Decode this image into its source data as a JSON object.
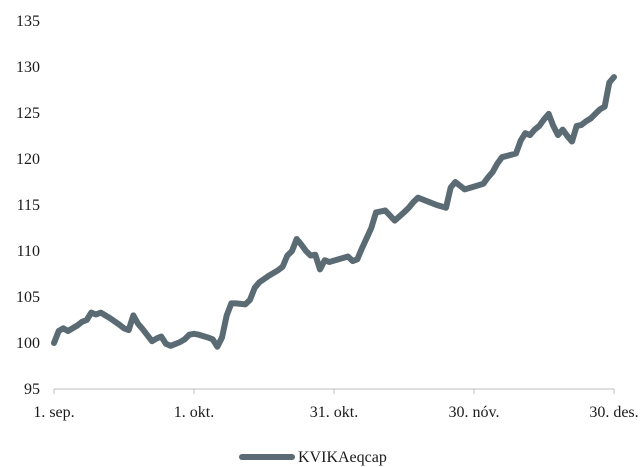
{
  "chart_data": {
    "type": "line",
    "title": "",
    "xlabel": "",
    "ylabel": "",
    "ylim": [
      95,
      135
    ],
    "y_ticks": [
      95,
      100,
      105,
      110,
      115,
      120,
      125,
      130,
      135
    ],
    "y_tick_labels": [
      "95",
      "100",
      "105",
      "110",
      "115",
      "120",
      "125",
      "130",
      "135"
    ],
    "x_ticks": [
      {
        "x": "2023-09-01",
        "label": "1. sep."
      },
      {
        "x": "2023-10-01",
        "label": "1. okt."
      },
      {
        "x": "2023-10-31",
        "label": "31. okt."
      },
      {
        "x": "2023-11-30",
        "label": "30. nóv."
      },
      {
        "x": "2023-12-30",
        "label": "30. des."
      }
    ],
    "xlim": [
      "2023-09-01",
      "2023-12-30"
    ],
    "grid": false,
    "legend_position": "bottom-center",
    "series": [
      {
        "name": "KVIKAeqcap",
        "color": "#5b6b73",
        "points": [
          [
            "2023-09-01",
            100.0
          ],
          [
            "2023-09-02",
            101.3
          ],
          [
            "2023-09-03",
            101.6
          ],
          [
            "2023-09-04",
            101.3
          ],
          [
            "2023-09-06",
            101.9
          ],
          [
            "2023-09-07",
            102.3
          ],
          [
            "2023-09-08",
            102.5
          ],
          [
            "2023-09-09",
            103.3
          ],
          [
            "2023-09-10",
            103.1
          ],
          [
            "2023-09-11",
            103.3
          ],
          [
            "2023-09-13",
            102.7
          ],
          [
            "2023-09-15",
            102.0
          ],
          [
            "2023-09-16",
            101.6
          ],
          [
            "2023-09-17",
            101.4
          ],
          [
            "2023-09-18",
            103.0
          ],
          [
            "2023-09-19",
            102.1
          ],
          [
            "2023-09-20",
            101.5
          ],
          [
            "2023-09-22",
            100.2
          ],
          [
            "2023-09-23",
            100.5
          ],
          [
            "2023-09-24",
            100.7
          ],
          [
            "2023-09-25",
            99.9
          ],
          [
            "2023-09-26",
            99.7
          ],
          [
            "2023-09-28",
            100.1
          ],
          [
            "2023-09-29",
            100.4
          ],
          [
            "2023-09-30",
            100.9
          ],
          [
            "2023-10-01",
            101.0
          ],
          [
            "2023-10-02",
            100.9
          ],
          [
            "2023-10-04",
            100.6
          ],
          [
            "2023-10-05",
            100.4
          ],
          [
            "2023-10-06",
            99.6
          ],
          [
            "2023-10-07",
            100.6
          ],
          [
            "2023-10-08",
            103.0
          ],
          [
            "2023-10-09",
            104.3
          ],
          [
            "2023-10-10",
            104.3
          ],
          [
            "2023-10-12",
            104.2
          ],
          [
            "2023-10-13",
            104.7
          ],
          [
            "2023-10-14",
            106.0
          ],
          [
            "2023-10-15",
            106.6
          ],
          [
            "2023-10-17",
            107.3
          ],
          [
            "2023-10-19",
            107.9
          ],
          [
            "2023-10-20",
            108.3
          ],
          [
            "2023-10-21",
            109.5
          ],
          [
            "2023-10-22",
            110.0
          ],
          [
            "2023-10-23",
            111.3
          ],
          [
            "2023-10-24",
            110.7
          ],
          [
            "2023-10-25",
            110.0
          ],
          [
            "2023-10-26",
            109.5
          ],
          [
            "2023-10-27",
            109.6
          ],
          [
            "2023-10-28",
            108.0
          ],
          [
            "2023-10-29",
            109.0
          ],
          [
            "2023-10-30",
            108.8
          ],
          [
            "2023-11-01",
            109.1
          ],
          [
            "2023-11-03",
            109.4
          ],
          [
            "2023-11-04",
            108.9
          ],
          [
            "2023-11-05",
            109.1
          ],
          [
            "2023-11-06",
            110.3
          ],
          [
            "2023-11-08",
            112.5
          ],
          [
            "2023-11-09",
            114.2
          ],
          [
            "2023-11-11",
            114.4
          ],
          [
            "2023-11-13",
            113.3
          ],
          [
            "2023-11-15",
            114.2
          ],
          [
            "2023-11-16",
            114.7
          ],
          [
            "2023-11-17",
            115.3
          ],
          [
            "2023-11-18",
            115.8
          ],
          [
            "2023-11-20",
            115.4
          ],
          [
            "2023-11-22",
            115.0
          ],
          [
            "2023-11-24",
            114.7
          ],
          [
            "2023-11-25",
            116.9
          ],
          [
            "2023-11-26",
            117.5
          ],
          [
            "2023-11-27",
            117.1
          ],
          [
            "2023-11-28",
            116.7
          ],
          [
            "2023-11-30",
            117.0
          ],
          [
            "2023-12-02",
            117.3
          ],
          [
            "2023-12-03",
            118.0
          ],
          [
            "2023-12-04",
            118.6
          ],
          [
            "2023-12-05",
            119.5
          ],
          [
            "2023-12-06",
            120.2
          ],
          [
            "2023-12-09",
            120.6
          ],
          [
            "2023-12-10",
            122.0
          ],
          [
            "2023-12-11",
            122.8
          ],
          [
            "2023-12-12",
            122.6
          ],
          [
            "2023-12-13",
            123.2
          ],
          [
            "2023-12-14",
            123.6
          ],
          [
            "2023-12-15",
            124.3
          ],
          [
            "2023-12-16",
            124.9
          ],
          [
            "2023-12-17",
            123.6
          ],
          [
            "2023-12-18",
            122.6
          ],
          [
            "2023-12-19",
            123.2
          ],
          [
            "2023-12-20",
            122.5
          ],
          [
            "2023-12-21",
            121.9
          ],
          [
            "2023-12-22",
            123.6
          ],
          [
            "2023-12-23",
            123.7
          ],
          [
            "2023-12-24",
            124.1
          ],
          [
            "2023-12-25",
            124.4
          ],
          [
            "2023-12-26",
            124.9
          ],
          [
            "2023-12-27",
            125.4
          ],
          [
            "2023-12-28",
            125.7
          ],
          [
            "2023-12-29",
            128.3
          ],
          [
            "2023-12-30",
            128.9
          ]
        ]
      }
    ]
  }
}
